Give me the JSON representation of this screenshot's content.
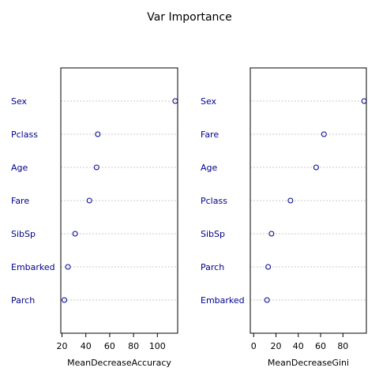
{
  "title": "Var Importance",
  "chart_data": [
    {
      "type": "scatter",
      "xlabel": "MeanDecreaseAccuracy",
      "xlim": [
        19,
        117
      ],
      "xticks": [
        20,
        40,
        60,
        80,
        100
      ],
      "grid": false,
      "point_color": "#00008b",
      "categories": [
        "Sex",
        "Pclass",
        "Age",
        "Fare",
        "SibSp",
        "Embarked",
        "Parch"
      ],
      "values": [
        115,
        50,
        49,
        43,
        31,
        25,
        22
      ]
    },
    {
      "type": "scatter",
      "xlabel": "MeanDecreaseGini",
      "xlim": [
        -3,
        101
      ],
      "xticks": [
        0,
        20,
        40,
        60,
        80
      ],
      "grid": false,
      "point_color": "#00008b",
      "categories": [
        "Sex",
        "Fare",
        "Age",
        "Pclass",
        "SibSp",
        "Parch",
        "Embarked"
      ],
      "values": [
        99,
        63,
        56,
        33,
        16,
        13,
        12
      ]
    }
  ]
}
